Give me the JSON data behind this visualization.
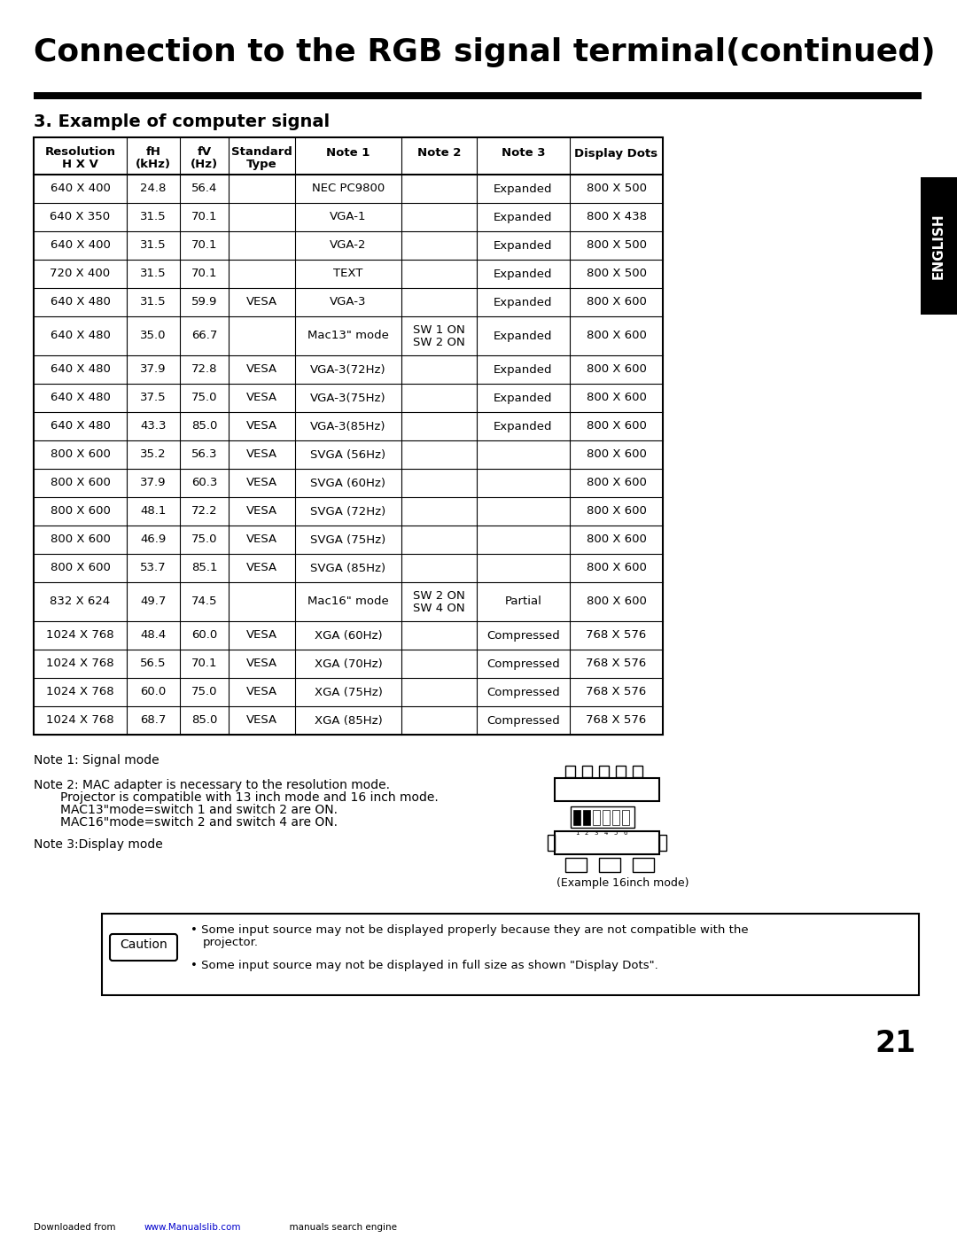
{
  "title": "Connection to the RGB signal terminal(continued)",
  "section_title": "3. Example of computer signal",
  "table_headers": [
    "Resolution\nH X V",
    "fH\n(kHz)",
    "fV\n(Hz)",
    "Standard\nType",
    "Note 1",
    "Note 2",
    "Note 3",
    "Display Dots"
  ],
  "table_data": [
    [
      "640 X 400",
      "24.8",
      "56.4",
      "",
      "NEC PC9800",
      "",
      "Expanded",
      "800 X 500"
    ],
    [
      "640 X 350",
      "31.5",
      "70.1",
      "",
      "VGA-1",
      "",
      "Expanded",
      "800 X 438"
    ],
    [
      "640 X 400",
      "31.5",
      "70.1",
      "",
      "VGA-2",
      "",
      "Expanded",
      "800 X 500"
    ],
    [
      "720 X 400",
      "31.5",
      "70.1",
      "",
      "TEXT",
      "",
      "Expanded",
      "800 X 500"
    ],
    [
      "640 X 480",
      "31.5",
      "59.9",
      "VESA",
      "VGA-3",
      "",
      "Expanded",
      "800 X 600"
    ],
    [
      "640 X 480",
      "35.0",
      "66.7",
      "",
      "Mac13\" mode",
      "SW 1 ON\nSW 2 ON",
      "Expanded",
      "800 X 600"
    ],
    [
      "640 X 480",
      "37.9",
      "72.8",
      "VESA",
      "VGA-3(72Hz)",
      "",
      "Expanded",
      "800 X 600"
    ],
    [
      "640 X 480",
      "37.5",
      "75.0",
      "VESA",
      "VGA-3(75Hz)",
      "",
      "Expanded",
      "800 X 600"
    ],
    [
      "640 X 480",
      "43.3",
      "85.0",
      "VESA",
      "VGA-3(85Hz)",
      "",
      "Expanded",
      "800 X 600"
    ],
    [
      "800 X 600",
      "35.2",
      "56.3",
      "VESA",
      "SVGA (56Hz)",
      "",
      "",
      "800 X 600"
    ],
    [
      "800 X 600",
      "37.9",
      "60.3",
      "VESA",
      "SVGA (60Hz)",
      "",
      "",
      "800 X 600"
    ],
    [
      "800 X 600",
      "48.1",
      "72.2",
      "VESA",
      "SVGA (72Hz)",
      "",
      "",
      "800 X 600"
    ],
    [
      "800 X 600",
      "46.9",
      "75.0",
      "VESA",
      "SVGA (75Hz)",
      "",
      "",
      "800 X 600"
    ],
    [
      "800 X 600",
      "53.7",
      "85.1",
      "VESA",
      "SVGA (85Hz)",
      "",
      "",
      "800 X 600"
    ],
    [
      "832 X 624",
      "49.7",
      "74.5",
      "",
      "Mac16\" mode",
      "SW 2 ON\nSW 4 ON",
      "Partial",
      "800 X 600"
    ],
    [
      "1024 X 768",
      "48.4",
      "60.0",
      "VESA",
      "XGA (60Hz)",
      "",
      "Compressed",
      "768 X 576"
    ],
    [
      "1024 X 768",
      "56.5",
      "70.1",
      "VESA",
      "XGA (70Hz)",
      "",
      "Compressed",
      "768 X 576"
    ],
    [
      "1024 X 768",
      "60.0",
      "75.0",
      "VESA",
      "XGA (75Hz)",
      "",
      "Compressed",
      "768 X 576"
    ],
    [
      "1024 X 768",
      "68.7",
      "85.0",
      "VESA",
      "XGA (85Hz)",
      "",
      "Compressed",
      "768 X 576"
    ]
  ],
  "note1": "Note 1: Signal mode",
  "note2_line1": "Note 2: MAC adapter is necessary to the resolution mode.",
  "note2_line2": "Projector is compatible with 13 inch mode and 16 inch mode.",
  "note2_line3": "MAC13\"mode=switch 1 and switch 2 are ON.",
  "note2_line4": "MAC16\"mode=switch 2 and switch 4 are ON.",
  "note3": "Note 3:Display mode",
  "connector_caption": "(Example 16inch mode)",
  "caution_bullet1_a": "Some input source may not be displayed properly because they are not compatible with the",
  "caution_bullet1_b": "projector.",
  "caution_bullet2": "Some input source may not be displayed in full size as shown \"Display Dots\".",
  "page_number": "21",
  "footer_text1": "Downloaded from ",
  "footer_link": "www.Manualslib.com",
  "footer_text2": "  manuals search engine",
  "english_tab": "ENGLISH",
  "bg_color": "#ffffff",
  "text_color": "#000000",
  "link_color": "#0000cc"
}
